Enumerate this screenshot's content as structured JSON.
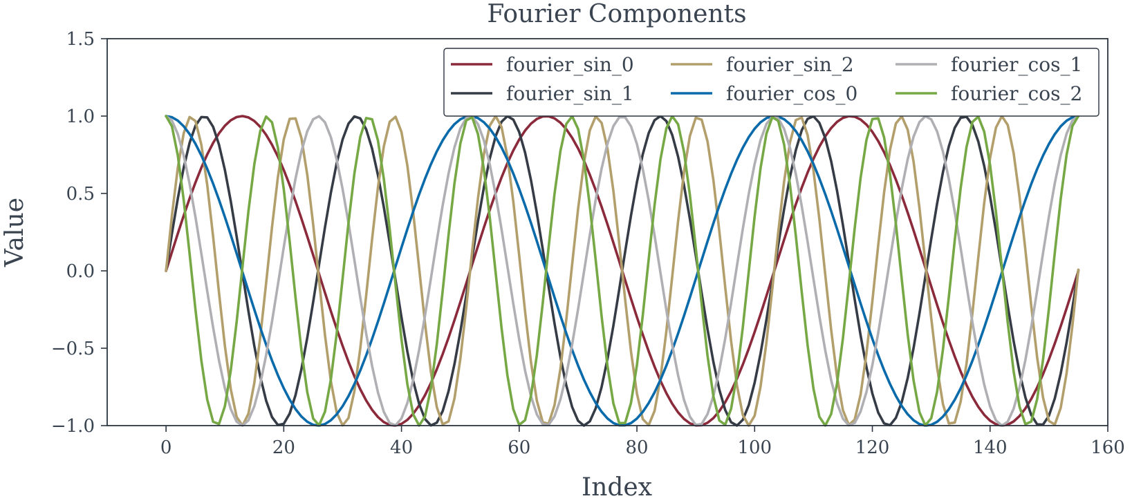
{
  "chart_data": {
    "type": "line",
    "title": "Fourier Components",
    "xlabel": "Index",
    "ylabel": "Value",
    "xlim": [
      -10,
      160
    ],
    "ylim": [
      -1.0,
      1.5
    ],
    "x_ticks": [
      0,
      20,
      40,
      60,
      80,
      100,
      120,
      140,
      160
    ],
    "x_tick_labels": [
      "0",
      "20",
      "40",
      "60",
      "80",
      "100",
      "120",
      "140",
      "160"
    ],
    "y_ticks": [
      -1.0,
      -0.5,
      0.0,
      0.5,
      1.0,
      1.5
    ],
    "y_tick_labels": [
      "−1.0",
      "−0.5",
      "0.0",
      "0.5",
      "1.0",
      "1.5"
    ],
    "grid": false,
    "legend": "top-right",
    "legend_columns": 3,
    "x_start": 0,
    "x_end": 155,
    "series": [
      {
        "name": "fourier_sin_0",
        "color": "#8b2a3b",
        "function": "sin",
        "period": 51.67
      },
      {
        "name": "fourier_sin_1",
        "color": "#363c46",
        "function": "sin",
        "period": 25.83
      },
      {
        "name": "fourier_sin_2",
        "color": "#b29f6c",
        "function": "sin",
        "period": 17.22
      },
      {
        "name": "fourier_cos_0",
        "color": "#0a6aaa",
        "function": "cos",
        "period": 51.67
      },
      {
        "name": "fourier_cos_1",
        "color": "#b0b0b4",
        "function": "cos",
        "period": 25.83
      },
      {
        "name": "fourier_cos_2",
        "color": "#76a845",
        "function": "cos",
        "period": 17.22
      }
    ]
  }
}
